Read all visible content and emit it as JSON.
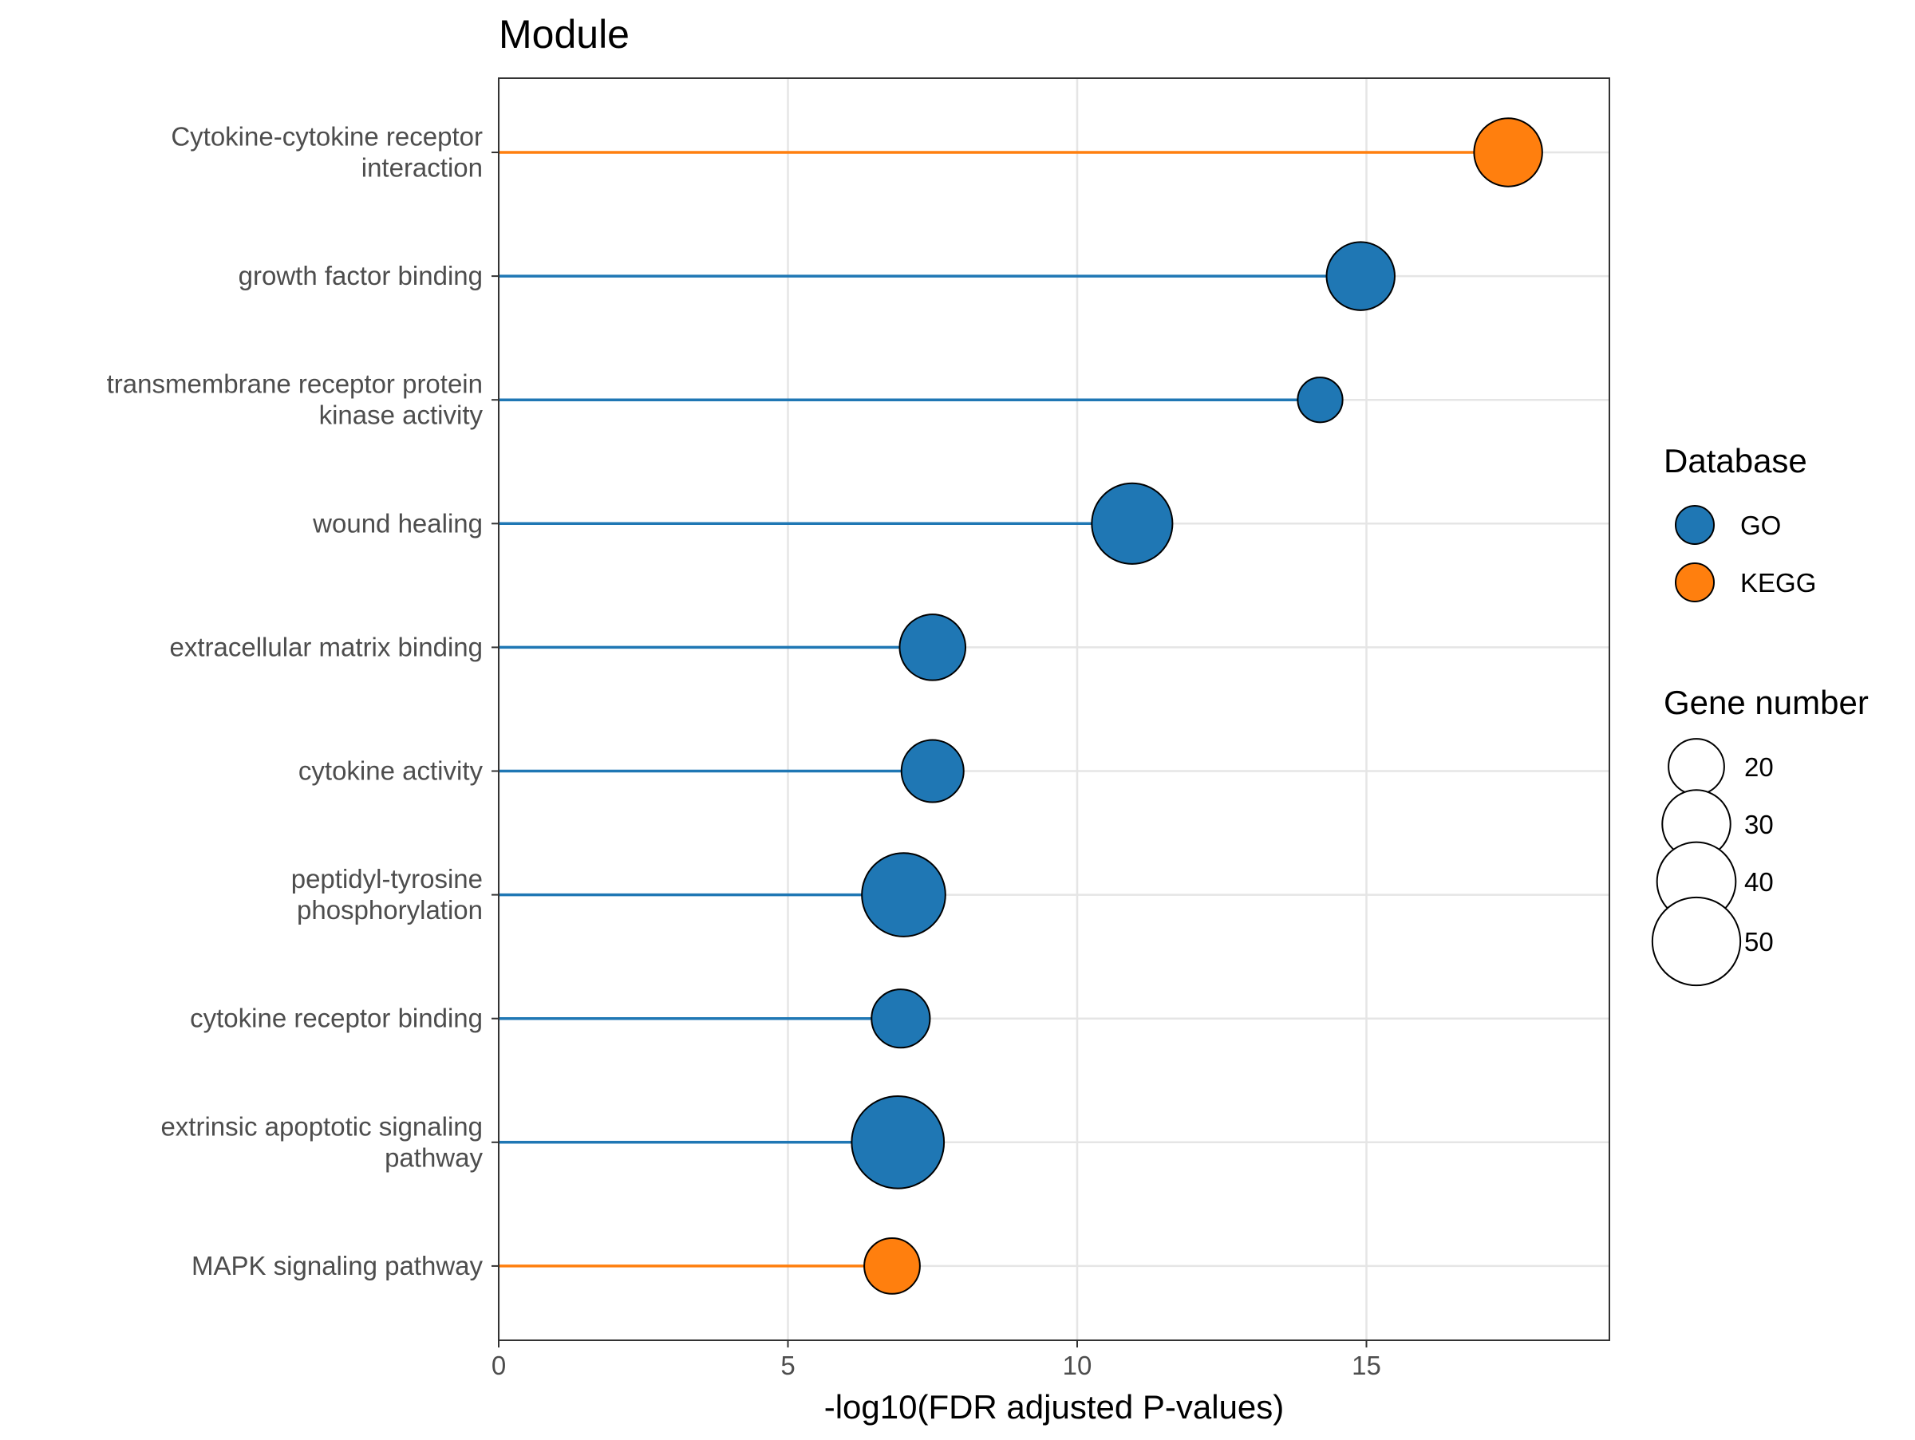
{
  "chart_data": {
    "type": "lollipop",
    "title": "Module",
    "xlabel": "-log10(FDR adjusted P-values)",
    "ylabel": "",
    "xlim": [
      0,
      19.2
    ],
    "xticks": [
      0,
      5,
      10,
      15
    ],
    "grid": true,
    "legend_position": "right",
    "colors": {
      "GO": "#1f77b4",
      "KEGG": "#ff7f0e"
    },
    "categories": [
      [
        "Cytokine-cytokine receptor",
        "interaction"
      ],
      [
        "growth factor binding"
      ],
      [
        "transmembrane receptor protein",
        "kinase activity"
      ],
      [
        "wound healing"
      ],
      [
        "extracellular matrix binding"
      ],
      [
        "cytokine activity"
      ],
      [
        "peptidyl-tyrosine",
        "phosphorylation"
      ],
      [
        "cytokine receptor binding"
      ],
      [
        "extrinsic apoptotic signaling",
        "pathway"
      ],
      [
        "MAPK signaling pathway"
      ]
    ],
    "points": [
      {
        "value": 17.45,
        "database": "KEGG",
        "gene_number": 30
      },
      {
        "value": 14.9,
        "database": "GO",
        "gene_number": 30
      },
      {
        "value": 14.2,
        "database": "GO",
        "gene_number": 13
      },
      {
        "value": 10.95,
        "database": "GO",
        "gene_number": 42
      },
      {
        "value": 7.5,
        "database": "GO",
        "gene_number": 28
      },
      {
        "value": 7.5,
        "database": "GO",
        "gene_number": 25
      },
      {
        "value": 7.0,
        "database": "GO",
        "gene_number": 45
      },
      {
        "value": 6.95,
        "database": "GO",
        "gene_number": 22
      },
      {
        "value": 6.9,
        "database": "GO",
        "gene_number": 55
      },
      {
        "value": 6.8,
        "database": "KEGG",
        "gene_number": 20
      }
    ],
    "legend": {
      "color_title": "Database",
      "color_entries": [
        "GO",
        "KEGG"
      ],
      "size_title": "Gene number",
      "size_entries": [
        20,
        30,
        40,
        50
      ]
    }
  }
}
